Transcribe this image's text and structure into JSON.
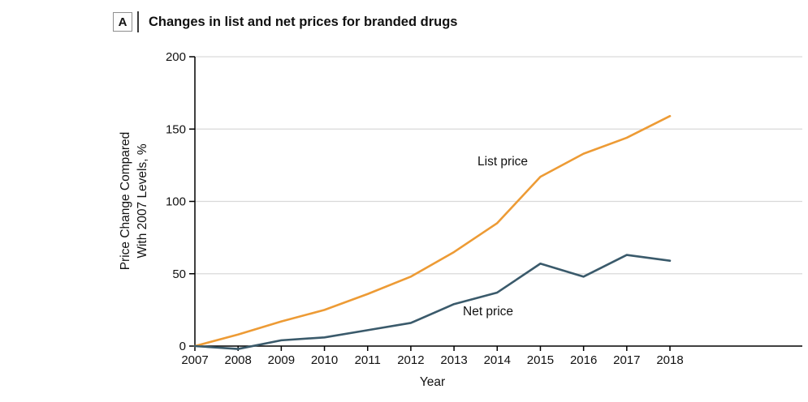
{
  "chart_data": {
    "type": "line",
    "panel_label": "A",
    "title": "Changes in list and net prices for branded drugs",
    "xlabel": "Year",
    "ylabel_lines": [
      "Price Change Compared",
      "With 2007 Levels, %"
    ],
    "x": [
      2007,
      2008,
      2009,
      2010,
      2011,
      2012,
      2013,
      2014,
      2015,
      2016,
      2017,
      2018
    ],
    "series": [
      {
        "name": "List price",
        "color": "#ED9B35",
        "values": [
          0,
          8,
          17,
          25,
          36,
          48,
          65,
          85,
          117,
          133,
          144,
          159
        ]
      },
      {
        "name": "Net price",
        "color": "#3A5A6B",
        "values": [
          0,
          -2,
          4,
          6,
          11,
          16,
          29,
          37,
          57,
          48,
          63,
          59
        ]
      }
    ],
    "ylim": [
      0,
      200
    ],
    "yticks": [
      0,
      50,
      100,
      150,
      200
    ],
    "grid": "horizontal",
    "axis_color": "#000000",
    "gridline_color": "#D9D9D9"
  }
}
